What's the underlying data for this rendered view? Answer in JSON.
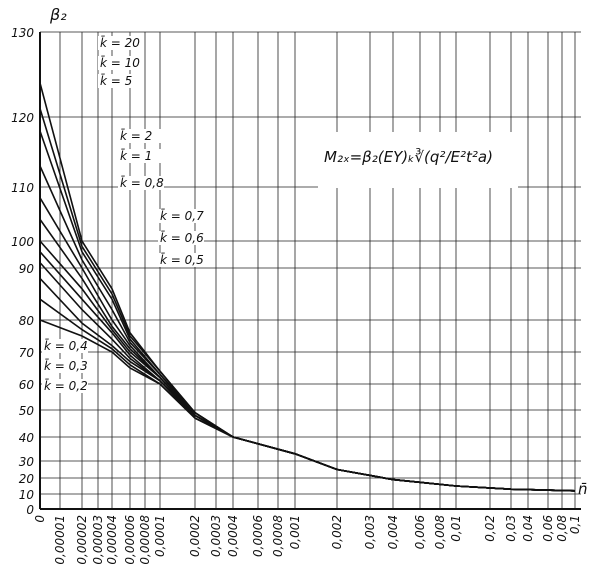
{
  "chart_data": {
    "type": "line",
    "y_label": "β₂",
    "x_label": "n̄",
    "annotation": "M₂ₓ=β₂(EY)ₖ∛(q²/E²t²a)",
    "color": "#111111",
    "grid": true,
    "ylim": [
      0,
      130
    ],
    "yticks": [
      0,
      10,
      20,
      30,
      40,
      50,
      60,
      70,
      80,
      90,
      100,
      110,
      120,
      130
    ],
    "xlim": [
      0,
      0.1
    ],
    "xticks": [
      0,
      {
        "value": 1e-05,
        "label": "0,00001"
      },
      {
        "value": 2e-05,
        "label": "0,00002"
      },
      {
        "value": 3e-05,
        "label": "0,00003"
      },
      {
        "value": 4e-05,
        "label": "0,00004"
      },
      {
        "value": 6e-05,
        "label": "0,00006"
      },
      {
        "value": 8e-05,
        "label": "0,00008"
      },
      {
        "value": 0.0001,
        "label": "0,0001"
      },
      {
        "value": 0.0002,
        "label": "0,0002"
      },
      {
        "value": 0.0003,
        "label": "0,0003"
      },
      {
        "value": 0.0004,
        "label": "0,0004"
      },
      {
        "value": 0.0006,
        "label": "0,0006"
      },
      {
        "value": 0.0008,
        "label": "0,0008"
      },
      {
        "value": 0.001,
        "label": "0,001"
      },
      {
        "value": 0.002,
        "label": "0,002"
      },
      {
        "value": 0.003,
        "label": "0,003"
      },
      {
        "value": 0.004,
        "label": "0,004"
      },
      {
        "value": 0.006,
        "label": "0,006"
      },
      {
        "value": 0.008,
        "label": "0,008"
      },
      {
        "value": 0.01,
        "label": "0,01"
      },
      {
        "value": 0.02,
        "label": "0,02"
      },
      {
        "value": 0.03,
        "label": "0,03"
      },
      {
        "value": 0.04,
        "label": "0,04"
      },
      {
        "value": 0.06,
        "label": "0,06"
      },
      {
        "value": 0.08,
        "label": "0,08"
      },
      {
        "value": 0.1,
        "label": "0,1"
      }
    ],
    "x": [
      0,
      2e-05,
      4e-05,
      6e-05,
      0.0001,
      0.0002,
      0.0004,
      0.001,
      0.002,
      0.004,
      0.01,
      0.03,
      0.1
    ],
    "series": [
      {
        "name": "k̄ = 20",
        "values": [
          124,
          100,
          86,
          76,
          64,
          49,
          40,
          33,
          25,
          19,
          15,
          13,
          12
        ]
      },
      {
        "name": "k̄ = 10",
        "values": [
          121,
          98,
          85,
          75,
          64,
          49,
          40,
          33,
          25,
          19,
          15,
          13,
          12
        ]
      },
      {
        "name": "k̄ = 5",
        "values": [
          118,
          96,
          84,
          74,
          63,
          49,
          40,
          33,
          25,
          19,
          15,
          13,
          12
        ]
      },
      {
        "name": "k̄ = 2",
        "values": [
          113,
          93,
          82,
          73,
          63,
          48,
          40,
          33,
          25,
          19,
          15,
          13,
          12
        ]
      },
      {
        "name": "k̄ = 1",
        "values": [
          108,
          90,
          80,
          72,
          62,
          48,
          40,
          33,
          25,
          19,
          15,
          13,
          12
        ]
      },
      {
        "name": "k̄ = 0,8",
        "values": [
          104,
          88,
          78,
          71,
          62,
          48,
          40,
          33,
          25,
          19,
          15,
          13,
          12
        ]
      },
      {
        "name": "k̄ = 0,7",
        "values": [
          100,
          86,
          77,
          70,
          62,
          48,
          40,
          33,
          25,
          19,
          15,
          13,
          12
        ]
      },
      {
        "name": "k̄ = 0,6",
        "values": [
          96,
          84,
          76,
          69,
          61,
          48,
          40,
          33,
          25,
          19,
          15,
          13,
          12
        ]
      },
      {
        "name": "k̄ = 0,5",
        "values": [
          92,
          82,
          74,
          68,
          61,
          48,
          40,
          33,
          25,
          19,
          15,
          13,
          12
        ]
      },
      {
        "name": "k̄ = 0,4",
        "values": [
          88,
          79,
          72,
          67,
          61,
          47,
          40,
          33,
          25,
          19,
          15,
          13,
          12
        ]
      },
      {
        "name": "k̄ = 0,3",
        "values": [
          84,
          77,
          71,
          66,
          60,
          47,
          40,
          33,
          25,
          19,
          15,
          13,
          12
        ]
      },
      {
        "name": "k̄ = 0,2",
        "values": [
          80,
          75,
          70,
          65,
          60,
          47,
          40,
          33,
          25,
          19,
          15,
          13,
          12
        ]
      }
    ]
  }
}
